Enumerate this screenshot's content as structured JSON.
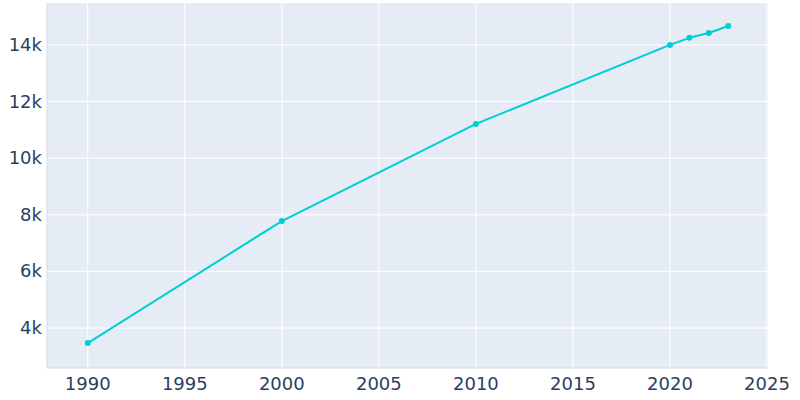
{
  "chart_data": {
    "type": "line",
    "x": [
      1990,
      2000,
      2010,
      2020,
      2021,
      2022,
      2023
    ],
    "values": [
      3470,
      7780,
      11210,
      14000,
      14250,
      14420,
      14670
    ],
    "color": "#00ced1",
    "marker": "circle",
    "xlim": [
      1987.9,
      2025.05
    ],
    "ylim": [
      2590,
      15480
    ],
    "xticks": [
      1990,
      1995,
      2000,
      2005,
      2010,
      2015,
      2020,
      2025
    ],
    "yticks": [
      {
        "value": 4000,
        "label": "4k"
      },
      {
        "value": 6000,
        "label": "6k"
      },
      {
        "value": 8000,
        "label": "8k"
      },
      {
        "value": 10000,
        "label": "10k"
      },
      {
        "value": 12000,
        "label": "12k"
      },
      {
        "value": 14000,
        "label": "14k"
      }
    ],
    "grid": true
  }
}
